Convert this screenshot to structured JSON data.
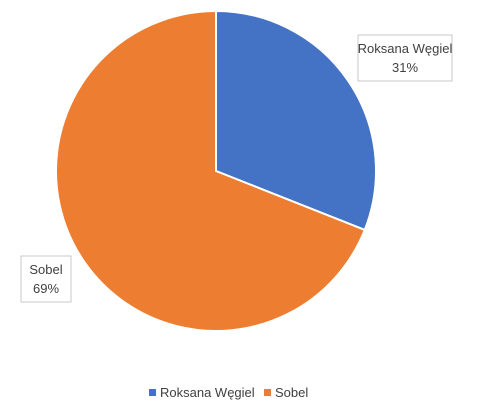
{
  "chart_data": {
    "type": "pie",
    "title": "",
    "start_angle_deg": 0,
    "direction": "clockwise",
    "legend_position": "bottom",
    "slices": [
      {
        "name": "Roksana Węgiel",
        "value": 31,
        "label_value": "31%",
        "color": "#4472C4"
      },
      {
        "name": "Sobel",
        "value": 69,
        "label_value": "69%",
        "color": "#ED7D31"
      }
    ]
  }
}
